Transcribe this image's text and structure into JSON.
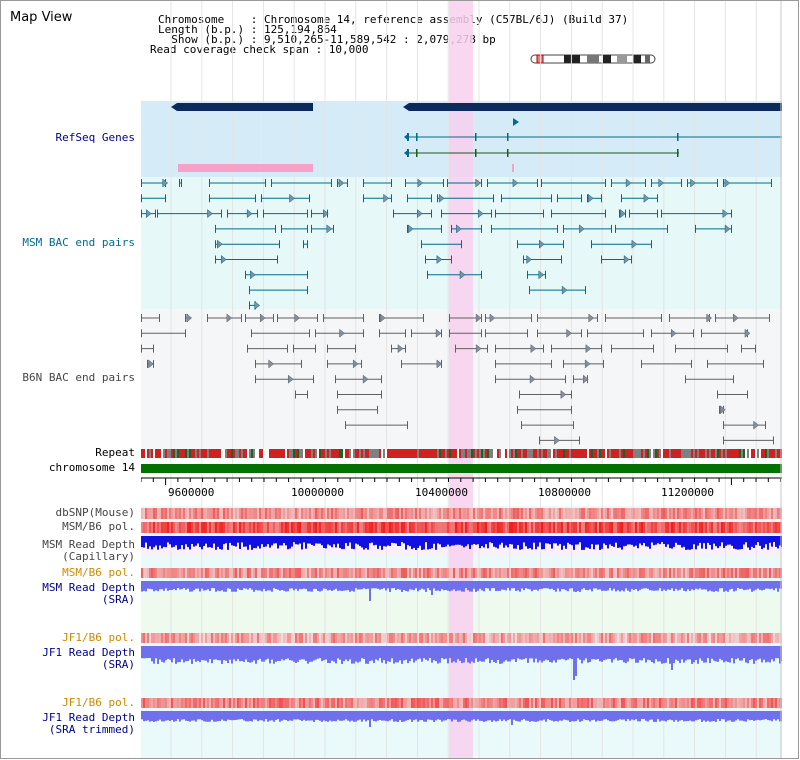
{
  "title": "Map View",
  "info": {
    "line1": "Chromosome    : Chromosome 14, reference assembly (C57BL/6J) (Build 37)",
    "line2": "Length (b.p.) : 125,194,864",
    "line3": "  Show (b.p.) : 9,510,265-11,589,542 : 2,079,278 bp",
    "line4": "Read coverage check span : 10,000"
  },
  "colors": {
    "refseq_bg": "#d5ecf8",
    "msm_bg": "#e6f8f8",
    "b6n_bg": "#f4f6f8",
    "highlight": "#f8d0ee",
    "gene_dark": "#0c2b5c",
    "gene_line": "#006b8a",
    "msm_pair": "#006b8a",
    "b6n_pair": "#606060",
    "chromosome": "#007000",
    "depth_capillary": "#1010e0",
    "depth_sra": "#7070ec",
    "snp": "#f08080",
    "label_blue": "#00008b",
    "label_orange": "#d08800",
    "label_teal": "#006c8c"
  },
  "tracks": {
    "refseq": "RefSeq Genes",
    "msm_bac": "MSM BAC end pairs",
    "b6n_bac": "B6N BAC end pairs",
    "repeat": "Repeat",
    "chromosome": "chromosome 14",
    "dbsnp": "dbSNP(Mouse)",
    "msm_b6_pol_1": "MSM/B6 pol.",
    "msm_depth_cap_1": "MSM Read Depth",
    "msm_depth_cap_2": "(Capillary)",
    "msm_b6_pol_2": "MSM/B6 pol.",
    "msm_depth_sra_1": "MSM Read Depth",
    "msm_depth_sra_2": "(SRA)",
    "jf1_b6_pol_1": "JF1/B6 pol.",
    "jf1_depth_sra_1": "JF1 Read Depth",
    "jf1_depth_sra_2": "(SRA)",
    "jf1_b6_pol_2": "JF1/B6 pol.",
    "jf1_depth_trim_1": "JF1 Read Depth",
    "jf1_depth_trim_2": "(SRA trimmed)"
  },
  "axis": {
    "ticks": [
      "9600000",
      "10000000",
      "10400000",
      "10800000",
      "11200000"
    ]
  }
}
